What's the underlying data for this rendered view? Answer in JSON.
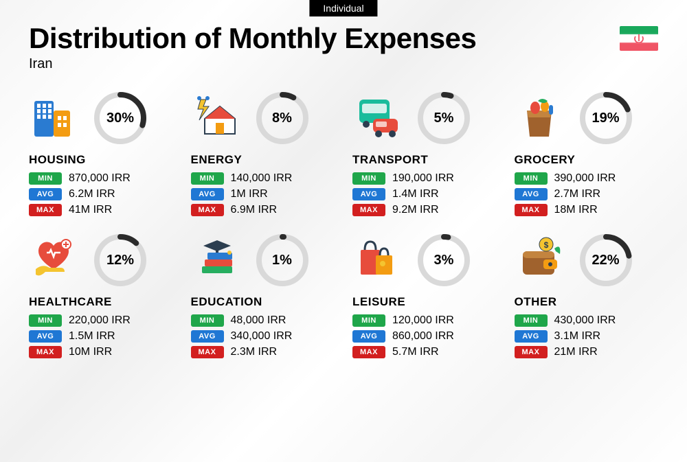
{
  "badge_top": "Individual",
  "title": "Distribution of Monthly Expenses",
  "subtitle": "Iran",
  "flag": {
    "top": "#19a85b",
    "mid": "#ffffff",
    "bottom": "#f05465",
    "emblem": "#f05465"
  },
  "ring": {
    "track": "#d9d9d9",
    "fill": "#2b2b2b",
    "stroke_width": 8
  },
  "badges": {
    "min": {
      "label": "MIN",
      "color": "#1fa64a"
    },
    "avg": {
      "label": "AVG",
      "color": "#1f77d4"
    },
    "max": {
      "label": "MAX",
      "color": "#d21f1f"
    }
  },
  "categories": [
    {
      "key": "housing",
      "name": "HOUSING",
      "percent": 30,
      "min": "870,000 IRR",
      "avg": "6.2M IRR",
      "max": "41M IRR",
      "icon": "buildings"
    },
    {
      "key": "energy",
      "name": "ENERGY",
      "percent": 8,
      "min": "140,000 IRR",
      "avg": "1M IRR",
      "max": "6.9M IRR",
      "icon": "house-bolt"
    },
    {
      "key": "transport",
      "name": "TRANSPORT",
      "percent": 5,
      "min": "190,000 IRR",
      "avg": "1.4M IRR",
      "max": "9.2M IRR",
      "icon": "bus-car"
    },
    {
      "key": "grocery",
      "name": "GROCERY",
      "percent": 19,
      "min": "390,000 IRR",
      "avg": "2.7M IRR",
      "max": "18M IRR",
      "icon": "bag-veg"
    },
    {
      "key": "healthcare",
      "name": "HEALTHCARE",
      "percent": 12,
      "min": "220,000 IRR",
      "avg": "1.5M IRR",
      "max": "10M IRR",
      "icon": "heart-hand"
    },
    {
      "key": "education",
      "name": "EDUCATION",
      "percent": 1,
      "min": "48,000 IRR",
      "avg": "340,000 IRR",
      "max": "2.3M IRR",
      "icon": "grad-books"
    },
    {
      "key": "leisure",
      "name": "LEISURE",
      "percent": 3,
      "min": "120,000 IRR",
      "avg": "860,000 IRR",
      "max": "5.7M IRR",
      "icon": "shopping"
    },
    {
      "key": "other",
      "name": "OTHER",
      "percent": 22,
      "min": "430,000 IRR",
      "avg": "3.1M IRR",
      "max": "21M IRR",
      "icon": "wallet"
    }
  ],
  "icon_palette": {
    "blue": "#2a7bd1",
    "red": "#e74c3c",
    "orange": "#f39c12",
    "yellow": "#f4c430",
    "green": "#27ae60",
    "teal": "#1abc9c",
    "brown": "#a0622d",
    "dark": "#2c3e50"
  }
}
